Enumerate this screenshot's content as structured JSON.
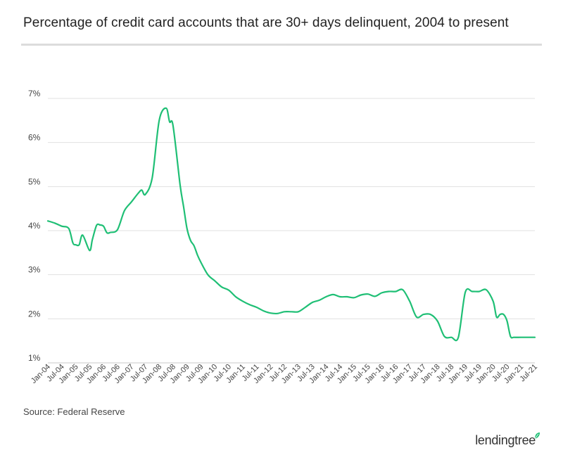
{
  "header": {
    "title": "Percentage of credit card accounts that are 30+ days delinquent, 2004 to present"
  },
  "footer": {
    "source": "Source: Federal Reserve",
    "brand": "lendingtree"
  },
  "colors": {
    "line": "#1fbf75",
    "grid": "#e1e1e1",
    "axis": "#c8c8c8",
    "text": "#444444",
    "leaf": "#1fbf75"
  },
  "chart_data": {
    "type": "line",
    "title": "Percentage of credit card accounts that are 30+ days delinquent, 2004 to present",
    "xlabel": "",
    "ylabel": "",
    "ylim": [
      1,
      7
    ],
    "y_ticks": [
      1,
      2,
      3,
      4,
      5,
      6,
      7
    ],
    "y_tick_labels": [
      "1%",
      "2%",
      "3%",
      "4%",
      "5%",
      "6%",
      "7%"
    ],
    "x_tick_labels": [
      "Jan-04",
      "Jul-04",
      "Jan-05",
      "Jul-05",
      "Jan-06",
      "Jul-06",
      "Jan-07",
      "Jul-07",
      "Jan-08",
      "Jul-08",
      "Jan-09",
      "Jul-09",
      "Jan-10",
      "Jul-10",
      "Jan-11",
      "Jul-11",
      "Jan-12",
      "Jul-12",
      "Jan-13",
      "Jul-13",
      "Jan-14",
      "Jul-14",
      "Jan-15",
      "Jul-15",
      "Jan-16",
      "Jul-16",
      "Jan-17",
      "Jul-17",
      "Jan-18",
      "Jul-18",
      "Jan-19",
      "Jul-19",
      "Jan-20",
      "Jul-20",
      "Jan-21",
      "Jul-21"
    ],
    "series": [
      {
        "name": "30+ days delinquent",
        "x": [
          0,
          0.5,
          1,
          1.5,
          1.8,
          2,
          2.25,
          2.5,
          3,
          3.2,
          3.5,
          3.75,
          4,
          4.25,
          4.5,
          5,
          5.5,
          6,
          6.5,
          6.75,
          7,
          7.5,
          8,
          8.5,
          8.75,
          9,
          9.5,
          9.75,
          10,
          10.25,
          10.5,
          10.75,
          11,
          11.5,
          12,
          12.5,
          13,
          13.5,
          14,
          14.5,
          15,
          15.5,
          16,
          16.5,
          17,
          17.5,
          18,
          18.5,
          19,
          19.5,
          20,
          20.5,
          21,
          21.5,
          22,
          22.5,
          23,
          23.5,
          24,
          24.5,
          25,
          25.5,
          26,
          26.5,
          27,
          27.5,
          28,
          28.5,
          29,
          29.5,
          30,
          30.5,
          31,
          31.5,
          32,
          32.25,
          32.5,
          32.75,
          33,
          33.25,
          33.5,
          34,
          34.5,
          35
        ],
        "values": [
          4.22,
          4.17,
          4.1,
          4.05,
          3.72,
          3.68,
          3.68,
          3.9,
          3.55,
          3.8,
          4.12,
          4.13,
          4.1,
          3.95,
          3.96,
          4.02,
          4.45,
          4.65,
          4.85,
          4.92,
          4.82,
          5.2,
          6.5,
          6.78,
          6.47,
          6.38,
          5.05,
          4.55,
          4.05,
          3.78,
          3.66,
          3.45,
          3.28,
          3.0,
          2.86,
          2.72,
          2.65,
          2.5,
          2.4,
          2.32,
          2.26,
          2.18,
          2.13,
          2.12,
          2.16,
          2.16,
          2.16,
          2.26,
          2.37,
          2.42,
          2.5,
          2.55,
          2.5,
          2.5,
          2.48,
          2.54,
          2.56,
          2.51,
          2.59,
          2.62,
          2.62,
          2.66,
          2.4,
          2.04,
          2.1,
          2.1,
          1.95,
          1.6,
          1.58,
          1.58,
          2.6,
          2.62,
          2.62,
          2.66,
          2.4,
          2.04,
          2.1,
          2.1,
          1.95,
          1.6,
          1.58,
          1.58,
          1.58,
          1.58
        ]
      }
    ]
  }
}
